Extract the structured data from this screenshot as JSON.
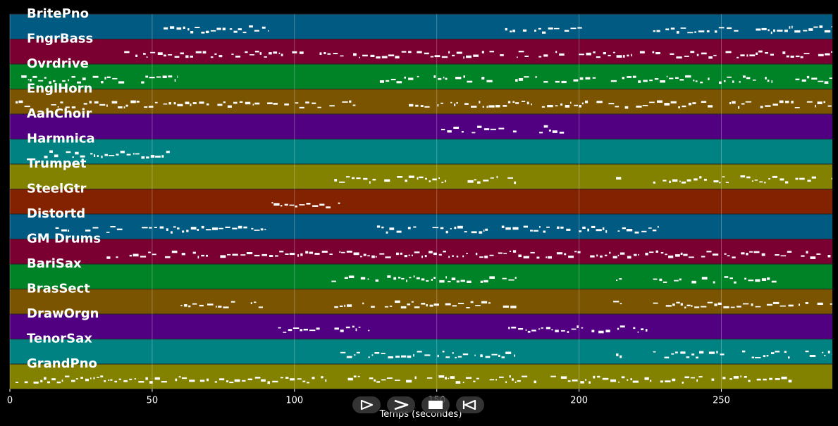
{
  "chart_data": {
    "type": "piano-roll",
    "title": "",
    "xlabel": "Temps (secondes)",
    "ylabel": "",
    "xlim": [
      0,
      289
    ],
    "xticks": [
      0,
      50,
      100,
      150,
      200,
      250
    ],
    "grid": true,
    "colors": [
      "#005a82",
      "#7a0032",
      "#008226",
      "#7a5400",
      "#520082",
      "#008282",
      "#828200",
      "#822200"
    ],
    "tracks": [
      {
        "name": "BritePno",
        "color": "#005a82",
        "segments": [
          [
            54,
            91
          ],
          [
            174,
            201
          ],
          [
            226,
            289
          ]
        ]
      },
      {
        "name": "FngrBass",
        "color": "#7a0032",
        "segments": [
          [
            35,
            289
          ]
        ]
      },
      {
        "name": "Ovrdrive",
        "color": "#008226",
        "segments": [
          [
            4,
            59
          ],
          [
            130,
            271
          ],
          [
            276,
            289
          ]
        ]
      },
      {
        "name": "EnglHorn",
        "color": "#7a5400",
        "segments": [
          [
            2,
            122
          ],
          [
            136,
            248
          ],
          [
            252,
            289
          ]
        ]
      },
      {
        "name": "AahChoir",
        "color": "#520082",
        "segments": [
          [
            150,
            178
          ],
          [
            186,
            195
          ]
        ]
      },
      {
        "name": "Harmnica",
        "color": "#008282",
        "segments": [
          [
            12,
            57
          ]
        ]
      },
      {
        "name": "Trumpet",
        "color": "#828200",
        "segments": [
          [
            91,
            92
          ],
          [
            114,
            178
          ],
          [
            213,
            215
          ],
          [
            226,
            274
          ],
          [
            276,
            289
          ]
        ]
      },
      {
        "name": "SteelGtr",
        "color": "#822200",
        "segments": [
          [
            92,
            116
          ]
        ]
      },
      {
        "name": "Distortd",
        "color": "#005a82",
        "segments": [
          [
            16,
            90
          ],
          [
            129,
            228
          ]
        ]
      },
      {
        "name": "GM Drums",
        "color": "#7a0032",
        "segments": [
          [
            34,
            289
          ]
        ]
      },
      {
        "name": "BariSax",
        "color": "#008226",
        "segments": [
          [
            113,
            178
          ],
          [
            213,
            215
          ],
          [
            226,
            271
          ]
        ]
      },
      {
        "name": "BrasSect",
        "color": "#7a5400",
        "segments": [
          [
            60,
            91
          ],
          [
            114,
            178
          ],
          [
            212,
            215
          ],
          [
            226,
            289
          ]
        ]
      },
      {
        "name": "DrawOrgn",
        "color": "#520082",
        "segments": [
          [
            92,
            129
          ],
          [
            174,
            224
          ]
        ]
      },
      {
        "name": "TenorSax",
        "color": "#008282",
        "segments": [
          [
            114,
            178
          ],
          [
            213,
            215
          ],
          [
            226,
            274
          ],
          [
            276,
            289
          ]
        ]
      },
      {
        "name": "GrandPno",
        "color": "#828200",
        "segments": [
          [
            2,
            185
          ],
          [
            190,
            275
          ]
        ]
      }
    ]
  },
  "controls": [
    {
      "name": "play-button",
      "icon": "play-outline-icon"
    },
    {
      "name": "fast-forward-button",
      "icon": "chevron-right-icon"
    },
    {
      "name": "stop-button",
      "icon": "stop-icon"
    },
    {
      "name": "rewind-button",
      "icon": "rewind-icon"
    }
  ]
}
